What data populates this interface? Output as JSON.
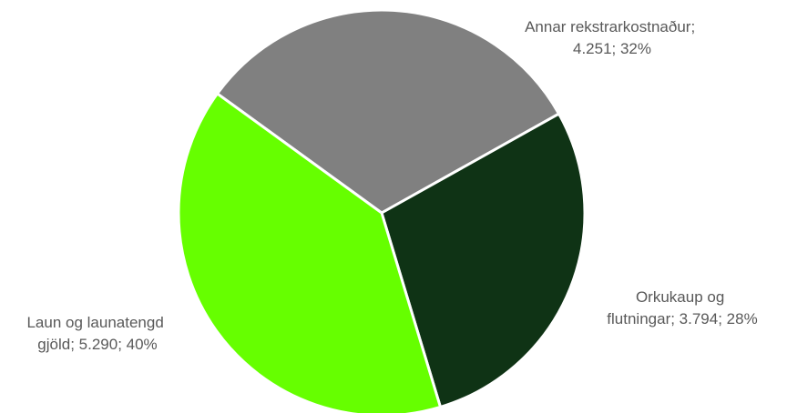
{
  "chart_data": {
    "type": "pie",
    "title": "",
    "slices": [
      {
        "name": "Annar rekstrarkostnaður",
        "value": 4251,
        "percent": 32,
        "label_lines": [
          "Annar rekstrarkostnaður;",
          "4.251; 32%"
        ],
        "color": "#808080"
      },
      {
        "name": "Orkukaup og flutningar",
        "value": 3794,
        "percent": 28,
        "label_lines": [
          "Orkukaup og",
          "flutningar; 3.794; 28%"
        ],
        "color": "#0f3315"
      },
      {
        "name": "Laun og launatengd gjöld",
        "value": 5290,
        "percent": 40,
        "label_lines": [
          "Laun og launatengd",
          "gjöld; 5.290; 40%"
        ],
        "color": "#66ff00"
      }
    ],
    "legend": "none"
  }
}
